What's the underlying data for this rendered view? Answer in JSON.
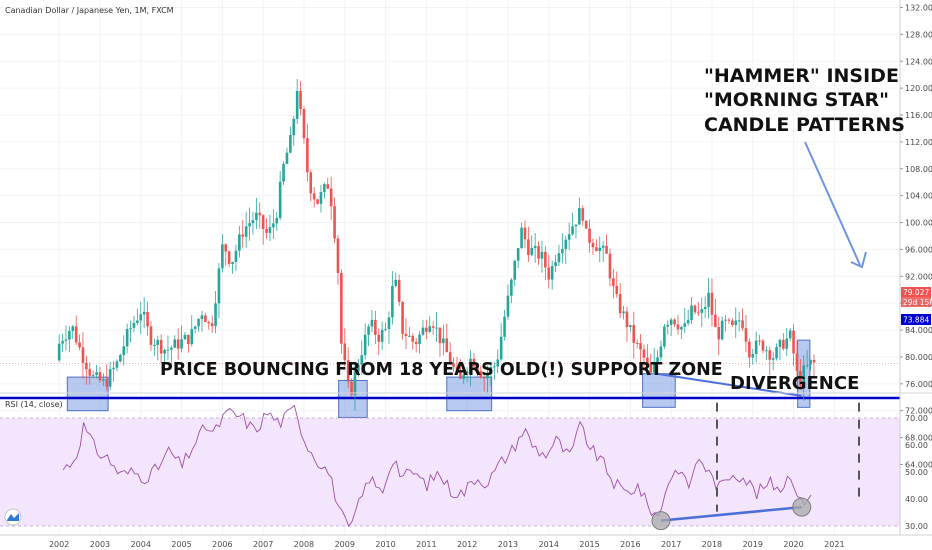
{
  "chart_data": {
    "type": "candlestick",
    "title": "Canadian Dollar / Japanese Yen, 1M, FXCM",
    "price_axis": {
      "ticks": [
        "132.000",
        "128.000",
        "124.000",
        "120.000",
        "116.000",
        "112.000",
        "108.000",
        "104.000",
        "100.000",
        "96.000",
        "92.000",
        "88.000",
        "84.000",
        "80.000",
        "76.000",
        "72.000",
        "68.000",
        "64.000"
      ],
      "range": [
        62,
        134
      ]
    },
    "year_ticks": [
      "2002",
      "2003",
      "2004",
      "2005",
      "2006",
      "2007",
      "2008",
      "2009",
      "2010",
      "2011",
      "2012",
      "2013",
      "2014",
      "2015",
      "2016",
      "2017",
      "2018",
      "2019",
      "2020",
      "2021"
    ],
    "price_path": [
      [
        2002.0,
        79.5
      ],
      [
        2002.1,
        82.5
      ],
      [
        2002.4,
        84.5
      ],
      [
        2002.6,
        81
      ],
      [
        2002.9,
        77
      ],
      [
        2003.2,
        76
      ],
      [
        2003.5,
        79
      ],
      [
        2003.8,
        84
      ],
      [
        2004.1,
        87
      ],
      [
        2004.3,
        83
      ],
      [
        2004.7,
        81
      ],
      [
        2005.0,
        82
      ],
      [
        2005.3,
        83
      ],
      [
        2005.6,
        87
      ],
      [
        2005.8,
        84
      ],
      [
        2006.1,
        97
      ],
      [
        2006.3,
        94
      ],
      [
        2006.6,
        99
      ],
      [
        2006.9,
        101
      ],
      [
        2007.2,
        98
      ],
      [
        2007.4,
        101
      ],
      [
        2007.6,
        109
      ],
      [
        2007.8,
        113
      ],
      [
        2007.9,
        121
      ],
      [
        2008.2,
        106
      ],
      [
        2008.4,
        103
      ],
      [
        2008.7,
        106
      ],
      [
        2008.9,
        95
      ],
      [
        2009.0,
        82
      ],
      [
        2009.2,
        74
      ],
      [
        2009.4,
        79
      ],
      [
        2009.7,
        85
      ],
      [
        2009.9,
        83
      ],
      [
        2010.1,
        84
      ],
      [
        2010.3,
        92
      ],
      [
        2010.5,
        84
      ],
      [
        2010.8,
        82
      ],
      [
        2011.0,
        84
      ],
      [
        2011.2,
        86
      ],
      [
        2011.4,
        83
      ],
      [
        2011.7,
        79
      ],
      [
        2011.9,
        76
      ],
      [
        2012.0,
        78
      ],
      [
        2012.2,
        80
      ],
      [
        2012.5,
        77
      ],
      [
        2012.8,
        79
      ],
      [
        2013.0,
        86
      ],
      [
        2013.2,
        92
      ],
      [
        2013.4,
        99
      ],
      [
        2013.6,
        96
      ],
      [
        2013.9,
        95
      ],
      [
        2014.1,
        92
      ],
      [
        2014.3,
        96
      ],
      [
        2014.6,
        99
      ],
      [
        2014.9,
        102
      ],
      [
        2015.0,
        98
      ],
      [
        2015.2,
        97
      ],
      [
        2015.5,
        95
      ],
      [
        2015.7,
        89
      ],
      [
        2016.0,
        85
      ],
      [
        2016.2,
        82
      ],
      [
        2016.4,
        80
      ],
      [
        2016.6,
        77
      ],
      [
        2016.8,
        81
      ],
      [
        2016.9,
        85
      ],
      [
        2017.1,
        86
      ],
      [
        2017.4,
        84
      ],
      [
        2017.6,
        87
      ],
      [
        2017.8,
        86
      ],
      [
        2018.0,
        89
      ],
      [
        2018.2,
        83
      ],
      [
        2018.4,
        85
      ],
      [
        2018.6,
        84
      ],
      [
        2018.8,
        86
      ],
      [
        2019.0,
        81
      ],
      [
        2019.3,
        82
      ],
      [
        2019.6,
        80
      ],
      [
        2019.8,
        82
      ],
      [
        2020.0,
        83
      ],
      [
        2020.1,
        80
      ],
      [
        2020.2,
        76
      ],
      [
        2020.35,
        78
      ],
      [
        2020.5,
        79
      ]
    ],
    "last_price": "79.027",
    "countdown": "29d 15h",
    "support_level": 73.884,
    "support_label": "73.884",
    "support_zones": [
      {
        "x0": 2002.2,
        "x1": 2003.2,
        "y0": 72.0,
        "y1": 77.0
      },
      {
        "x0": 2008.85,
        "x1": 2009.55,
        "y0": 71.0,
        "y1": 76.5
      },
      {
        "x0": 2011.5,
        "x1": 2012.6,
        "y0": 72.0,
        "y1": 77.0
      },
      {
        "x0": 2016.3,
        "x1": 2017.1,
        "y0": 72.5,
        "y1": 77.5
      },
      {
        "x0": 2020.1,
        "x1": 2020.4,
        "y0": 72.5,
        "y1": 82.5
      }
    ],
    "price_divergence_line": [
      [
        2016.65,
        77.5
      ],
      [
        2020.2,
        74.2
      ]
    ],
    "rsi": {
      "title": "RSI (14, close)",
      "ticks": [
        "70.00",
        "60.00",
        "50.00",
        "40.00",
        "30.00"
      ],
      "range": [
        24,
        76
      ],
      "band": [
        30,
        70
      ],
      "path": [
        [
          2002.1,
          51
        ],
        [
          2002.4,
          55
        ],
        [
          2002.6,
          67
        ],
        [
          2002.9,
          58
        ],
        [
          2003.2,
          55
        ],
        [
          2003.5,
          49
        ],
        [
          2003.8,
          50
        ],
        [
          2004.1,
          48
        ],
        [
          2004.4,
          51
        ],
        [
          2004.7,
          58
        ],
        [
          2005.0,
          52
        ],
        [
          2005.3,
          60
        ],
        [
          2005.6,
          67
        ],
        [
          2005.8,
          64
        ],
        [
          2006.0,
          70
        ],
        [
          2006.2,
          72
        ],
        [
          2006.5,
          70
        ],
        [
          2006.8,
          65
        ],
        [
          2007.1,
          72
        ],
        [
          2007.4,
          68
        ],
        [
          2007.6,
          71
        ],
        [
          2007.8,
          74
        ],
        [
          2008.0,
          62
        ],
        [
          2008.3,
          55
        ],
        [
          2008.6,
          50
        ],
        [
          2008.9,
          35
        ],
        [
          2009.1,
          28
        ],
        [
          2009.3,
          36
        ],
        [
          2009.6,
          48
        ],
        [
          2009.9,
          42
        ],
        [
          2010.2,
          56
        ],
        [
          2010.4,
          48
        ],
        [
          2010.7,
          50
        ],
        [
          2011.0,
          45
        ],
        [
          2011.3,
          50
        ],
        [
          2011.6,
          43
        ],
        [
          2011.9,
          42
        ],
        [
          2012.2,
          48
        ],
        [
          2012.5,
          46
        ],
        [
          2012.8,
          53
        ],
        [
          2013.1,
          58
        ],
        [
          2013.4,
          66
        ],
        [
          2013.6,
          60
        ],
        [
          2013.9,
          56
        ],
        [
          2014.2,
          62
        ],
        [
          2014.5,
          55
        ],
        [
          2014.8,
          68
        ],
        [
          2015.0,
          59
        ],
        [
          2015.3,
          54
        ],
        [
          2015.6,
          46
        ],
        [
          2015.9,
          42
        ],
        [
          2016.2,
          45
        ],
        [
          2016.4,
          38
        ],
        [
          2016.7,
          33
        ],
        [
          2016.9,
          46
        ],
        [
          2017.2,
          52
        ],
        [
          2017.4,
          44
        ],
        [
          2017.7,
          56
        ],
        [
          2017.9,
          50
        ],
        [
          2018.2,
          44
        ],
        [
          2018.5,
          50
        ],
        [
          2018.8,
          48
        ],
        [
          2019.1,
          42
        ],
        [
          2019.4,
          46
        ],
        [
          2019.7,
          44
        ],
        [
          2019.95,
          50
        ],
        [
          2020.15,
          38
        ],
        [
          2020.35,
          41
        ],
        [
          2020.5,
          44
        ]
      ],
      "divergence_line": [
        [
          2016.75,
          32
        ],
        [
          2020.2,
          37
        ]
      ]
    },
    "annotations": {
      "pattern": [
        "\"HAMMER\" INSIDE",
        "\"MORNING STAR\"",
        "CANDLE PATTERNS"
      ],
      "support": "PRICE BOUNCING FROM 18 YEARS OLD(!) SUPPORT ZONE",
      "divergence": "DIVERGENCE"
    },
    "colors": {
      "up": "#26a69a",
      "down": "#ef5350",
      "support_line": "#0000cc",
      "zone_fill": "#6f94e0",
      "rsi_line": "#9c4fa8",
      "rsi_band": "#f3e5fb",
      "divergence_line": "#4a6fd8",
      "last_price_badge": "#ef5350"
    }
  }
}
